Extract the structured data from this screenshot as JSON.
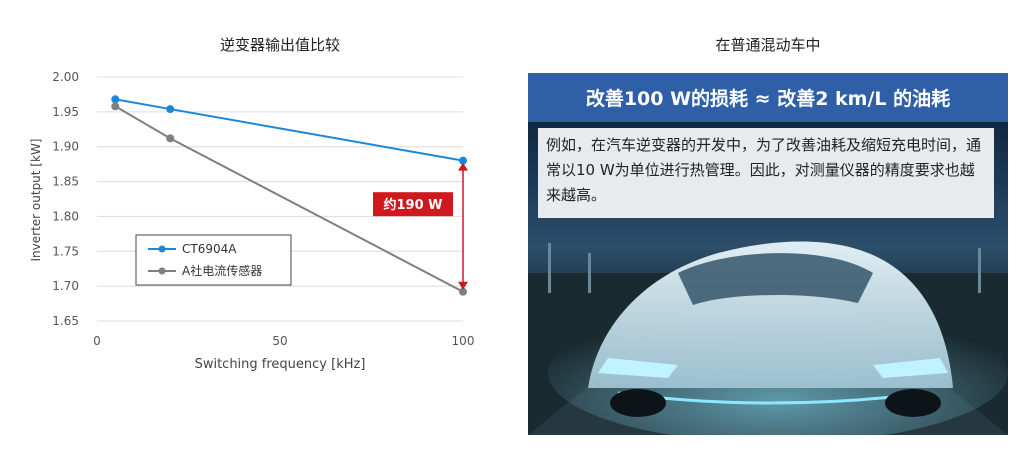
{
  "left_title": "逆变器输出值比较",
  "right_title": "在普通混动车中",
  "panel": {
    "banner": "改善100 W的损耗 ≈ 改善2 km/L 的油耗",
    "body": "例如，在汽车逆变器的开发中，为了改善油耗及缩短充电时间，通常以10 W为单位进行热管理。因此，对测量仪器的精度要求也越来越高。"
  },
  "chart_data": {
    "type": "line",
    "xlabel": "Switching frequency [kHz]",
    "ylabel": "Inverter output [kW]",
    "xlim": [
      0,
      100
    ],
    "ylim": [
      1.65,
      2.0
    ],
    "xticks": [
      0,
      50,
      100
    ],
    "yticks": [
      "1.65",
      "1.70",
      "1.75",
      "1.80",
      "1.85",
      "1.90",
      "1.95",
      "2.00"
    ],
    "grid": "horizontal",
    "legend_position": "lower-left",
    "series": [
      {
        "name": "CT6904A",
        "color": "#1b87d6",
        "x": [
          5,
          20,
          100
        ],
        "y": [
          1.968,
          1.954,
          1.88
        ]
      },
      {
        "name": "A社电流传感器",
        "color": "#7f7f7f",
        "x": [
          5,
          20,
          100
        ],
        "y": [
          1.958,
          1.912,
          1.692
        ]
      }
    ],
    "annotation": {
      "text": "约190 W",
      "x": 100,
      "y_from": 1.692,
      "y_to": 1.88,
      "color": "#d0191e"
    }
  }
}
